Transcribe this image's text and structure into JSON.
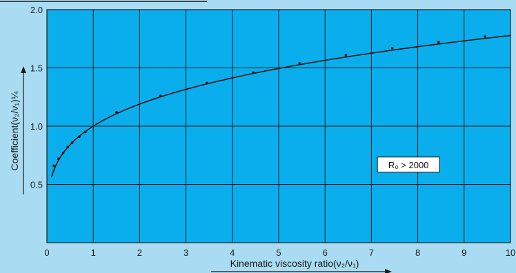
{
  "chart_data": {
    "type": "line",
    "title": "",
    "xlabel": "Kinematic viscosity ratio(ν₂/ν₁)",
    "ylabel": "Coefficient(ν₂/ν₁)¼",
    "xlim": [
      0,
      10
    ],
    "ylim": [
      0,
      2.0
    ],
    "x_ticks": [
      0,
      1,
      2,
      3,
      4,
      5,
      6,
      7,
      8,
      9,
      10
    ],
    "y_ticks": [
      0.5,
      1.0,
      1.5,
      2.0
    ],
    "x_tick_labels": [
      "0",
      "1",
      "2",
      "3",
      "4",
      "5",
      "6",
      "7",
      "8",
      "9",
      "10"
    ],
    "y_tick_labels": [
      "0.5",
      "1.0",
      "1.5",
      "2.0"
    ],
    "grid": true,
    "colors": {
      "plot_background": "#0aaeec",
      "page_background": "#a9dcf3",
      "grid": "#1a1a1a",
      "curve": "#111111"
    },
    "annotation": {
      "text": "R₀ > 2000",
      "x": 7.8,
      "y": 0.67
    },
    "series": [
      {
        "kind": "curve",
        "x_start": 0.1,
        "x_end": 10,
        "function": "x^0.25"
      },
      {
        "kind": "points",
        "x": [
          0.15,
          0.25,
          0.35,
          0.45,
          0.55,
          0.7,
          0.83,
          1.5,
          2.45,
          3.45,
          4.45,
          5.45,
          6.45,
          7.45,
          8.45,
          9.45
        ],
        "y": [
          0.66,
          0.72,
          0.77,
          0.82,
          0.86,
          0.91,
          0.95,
          1.12,
          1.26,
          1.37,
          1.46,
          1.54,
          1.61,
          1.67,
          1.72,
          1.77
        ]
      }
    ]
  }
}
